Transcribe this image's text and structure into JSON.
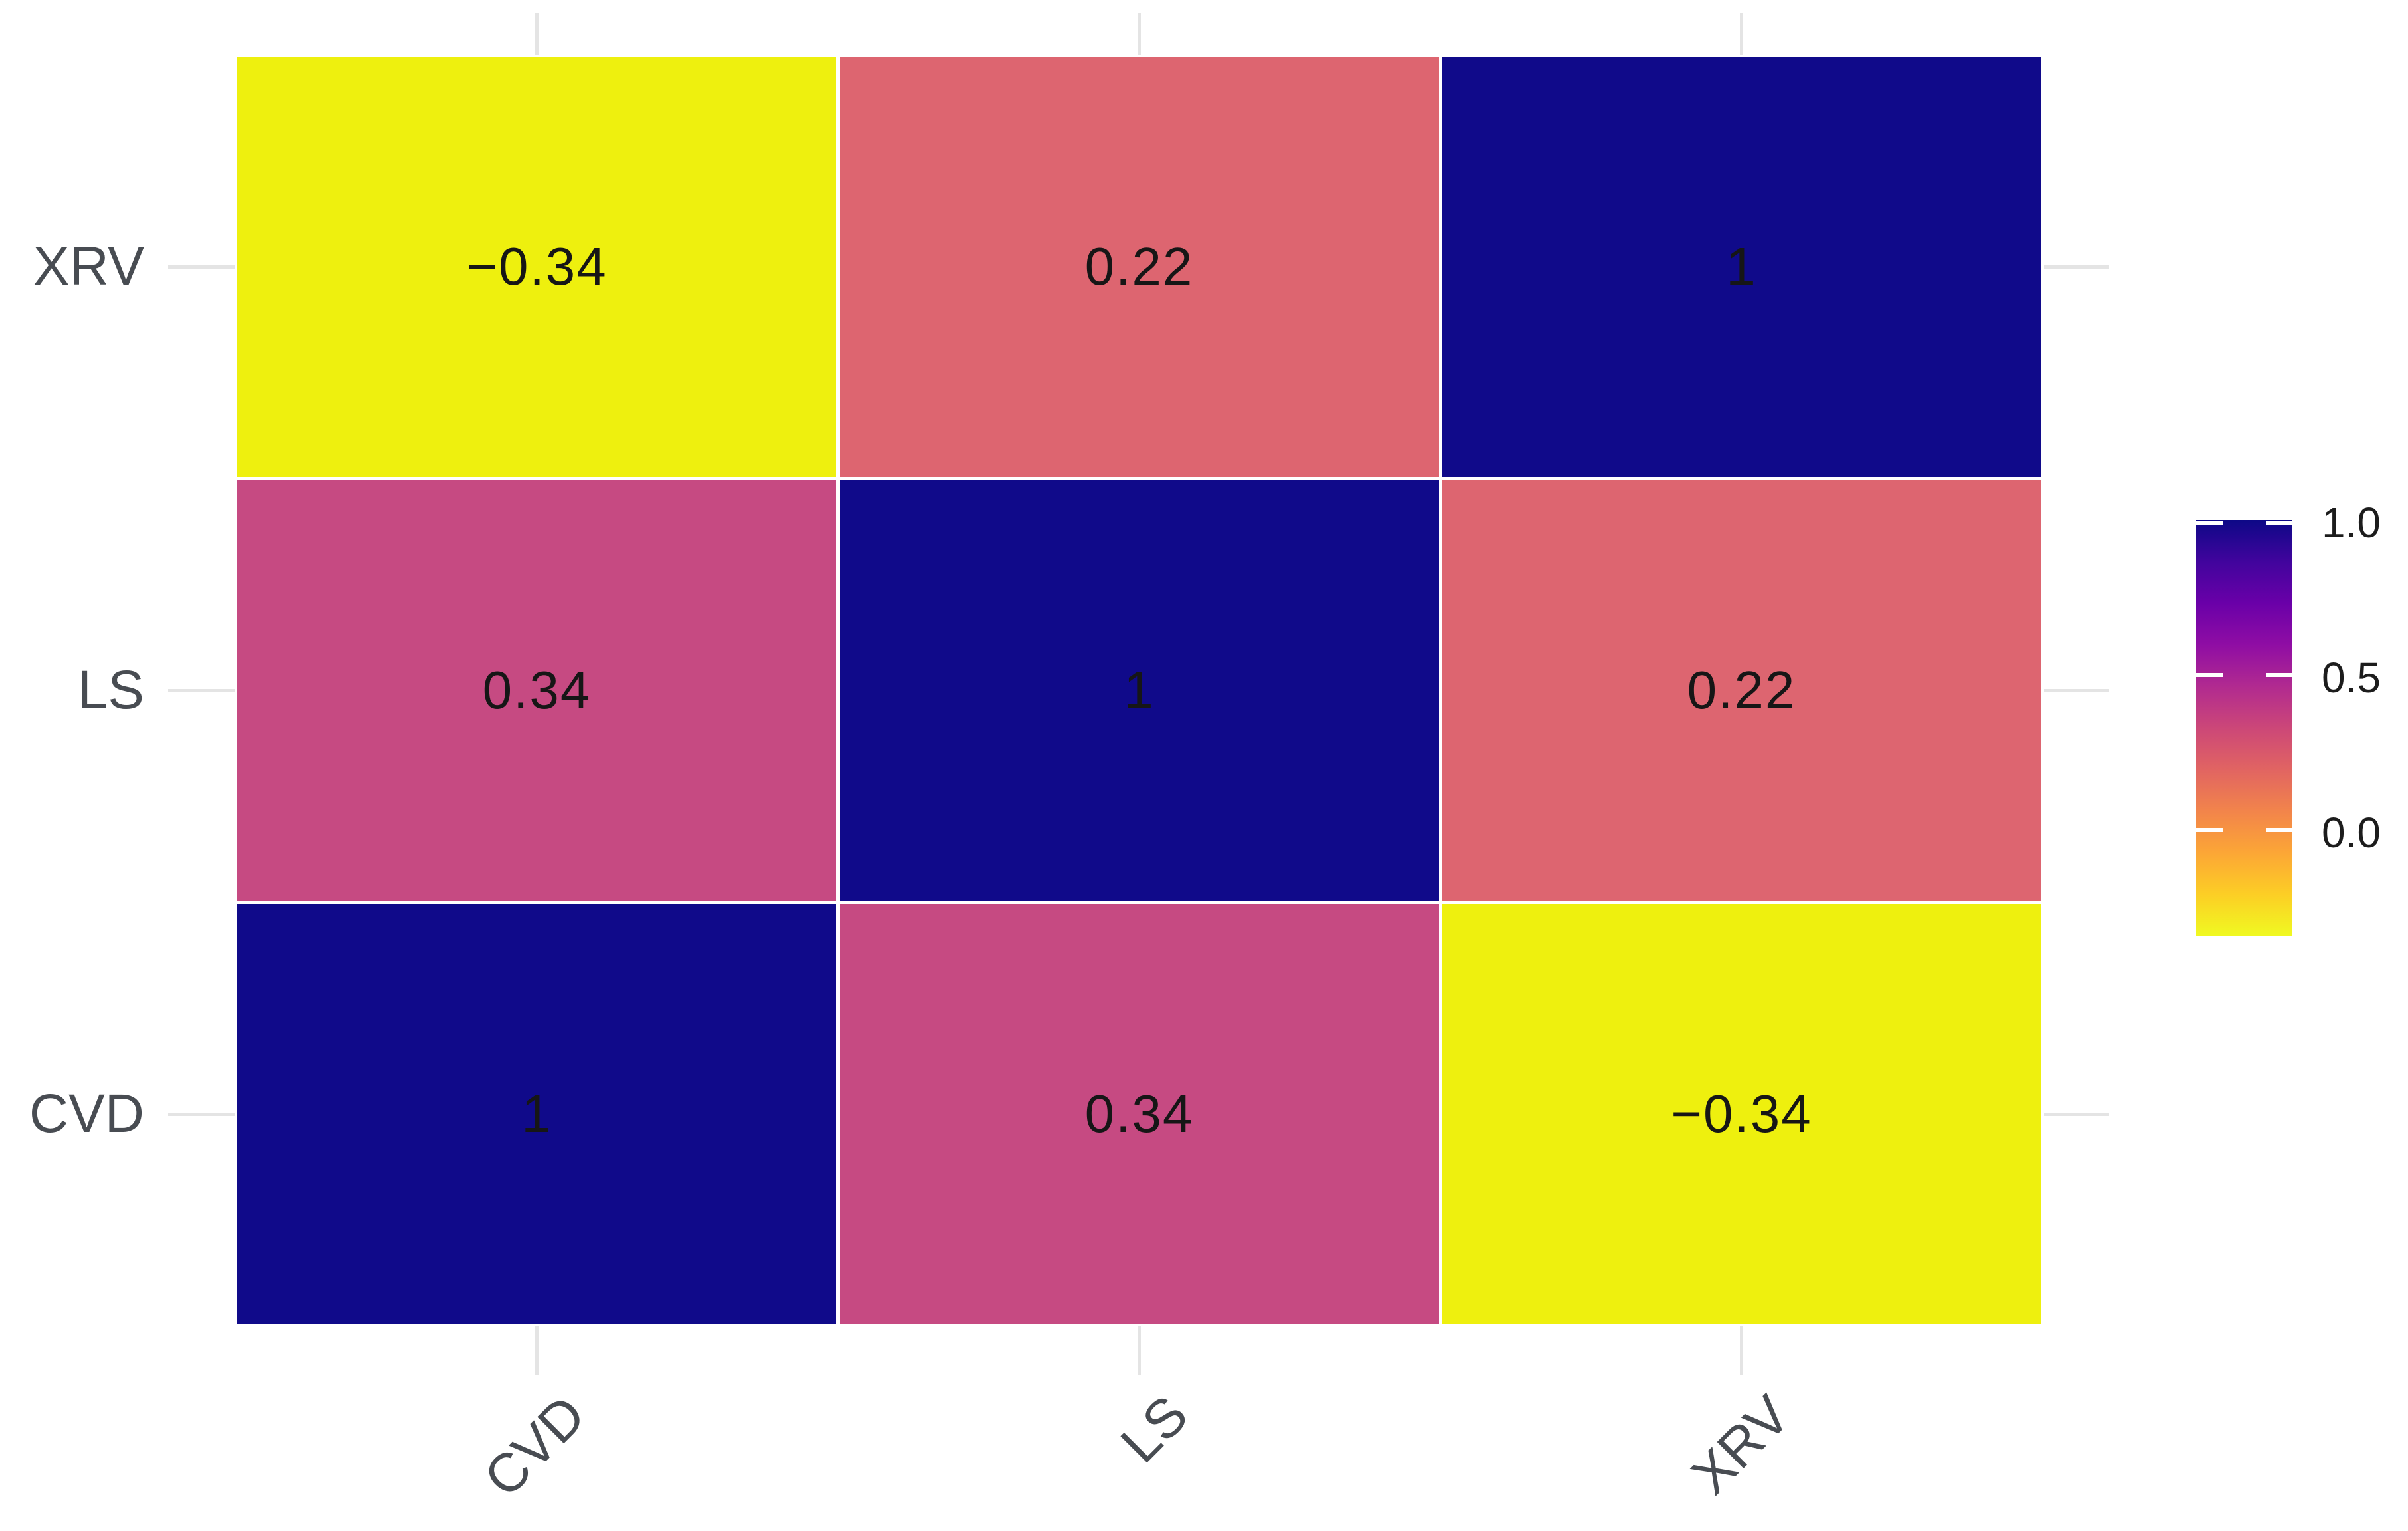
{
  "figure": {
    "background_color": "#ffffff",
    "axis_text_color": "#484c52",
    "cell_text_color": "#161616",
    "gridline_color": "#e4e4e4",
    "tile_gap_color": "#ffffff"
  },
  "chart_data": {
    "type": "heatmap",
    "title": "",
    "xlabel": "",
    "ylabel": "",
    "x_categories": [
      "CVD",
      "LS",
      "XRV"
    ],
    "y_categories_top_to_bottom": [
      "XRV",
      "LS",
      "CVD"
    ],
    "matrix_rows_top_to_bottom": [
      [
        -0.34,
        0.22,
        1.0
      ],
      [
        0.34,
        1.0,
        0.22
      ],
      [
        1.0,
        0.34,
        -0.34
      ]
    ],
    "cells": [
      {
        "row": "XRV",
        "col": "CVD",
        "value": -0.34,
        "label": "−0.34",
        "color": "#eef00e"
      },
      {
        "row": "XRV",
        "col": "LS",
        "value": 0.22,
        "label": "0.22",
        "color": "#dd6570"
      },
      {
        "row": "XRV",
        "col": "XRV",
        "value": 1,
        "label": "1",
        "color": "#100a8a"
      },
      {
        "row": "LS",
        "col": "CVD",
        "value": 0.34,
        "label": "0.34",
        "color": "#c64a82"
      },
      {
        "row": "LS",
        "col": "LS",
        "value": 1,
        "label": "1",
        "color": "#100a8a"
      },
      {
        "row": "LS",
        "col": "XRV",
        "value": 0.22,
        "label": "0.22",
        "color": "#dd6570"
      },
      {
        "row": "CVD",
        "col": "CVD",
        "value": 1,
        "label": "1",
        "color": "#100a8a"
      },
      {
        "row": "CVD",
        "col": "LS",
        "value": 0.34,
        "label": "0.34",
        "color": "#c64a82"
      },
      {
        "row": "CVD",
        "col": "XRV",
        "value": -0.34,
        "label": "−0.34",
        "color": "#eef00e"
      }
    ],
    "grid": true,
    "legend_position": "right",
    "colorbar": {
      "tick_labels": [
        "1.0",
        "0.5",
        "0.0"
      ],
      "tick_values": [
        1.0,
        0.5,
        0.0
      ],
      "range": [
        -0.34,
        1.0
      ],
      "palette": "plasma reversed (1.0 = dark blue, -0.34 = yellow)",
      "gradient_top_to_bottom": [
        "#0d0887",
        "#41049d",
        "#6a00a8",
        "#8f0da4",
        "#b12a90",
        "#cc4778",
        "#e16462",
        "#f2844b",
        "#fca636",
        "#fcce25",
        "#f0f921"
      ]
    }
  }
}
